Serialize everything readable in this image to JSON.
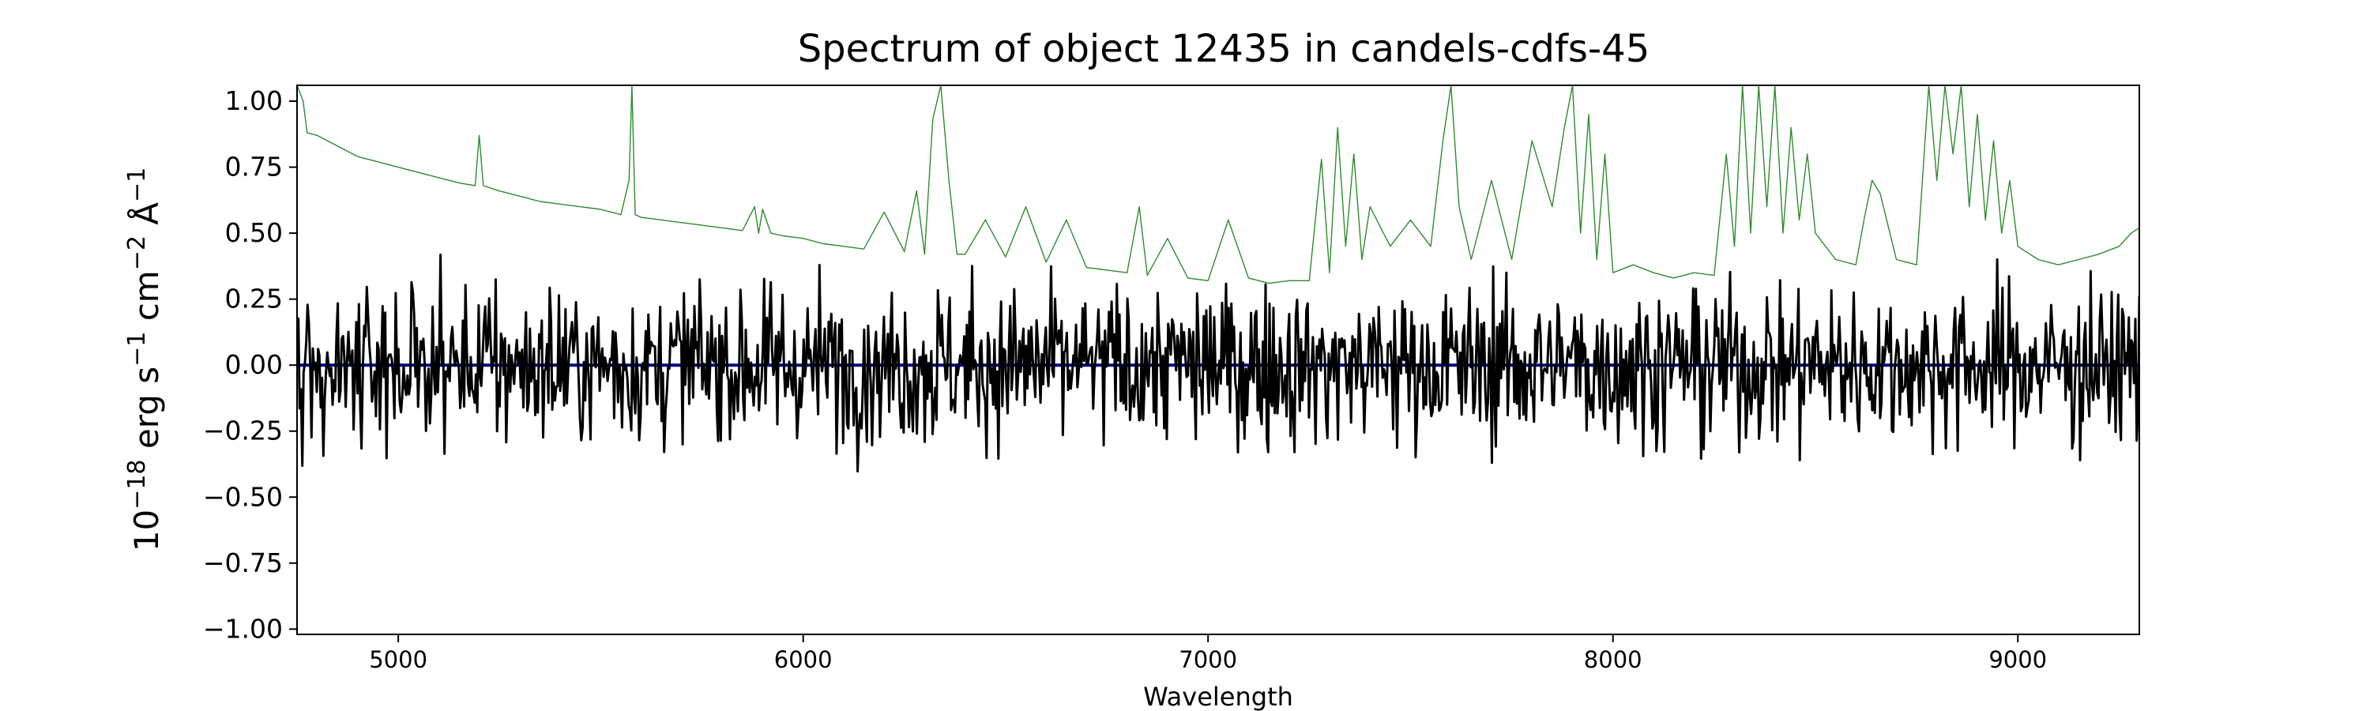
{
  "chart_data": {
    "type": "line",
    "title": "Spectrum of object 12435 in candels-cdfs-45",
    "xlabel": "Wavelength",
    "ylabel_parts": [
      "10",
      "−18",
      " erg s",
      "−1",
      " cm",
      "−2",
      " Å",
      "−1"
    ],
    "xlim": [
      4750,
      9300
    ],
    "ylim": [
      -1.02,
      1.06
    ],
    "x_ticks": [
      5000,
      6000,
      7000,
      8000,
      9000
    ],
    "y_ticks": [
      -1.0,
      -0.75,
      -0.5,
      -0.25,
      0.0,
      0.25,
      0.5,
      0.75,
      1.0
    ],
    "x_tick_labels": [
      "5000",
      "6000",
      "7000",
      "8000",
      "9000"
    ],
    "y_tick_labels": [
      "−1.00",
      "−0.75",
      "−0.50",
      "−0.25",
      "0.00",
      "0.25",
      "0.50",
      "0.75",
      "1.00"
    ],
    "grid": false,
    "legend": false,
    "series": [
      {
        "role": "model",
        "color": "#00008b",
        "x": [
          4750,
          9300
        ],
        "y": [
          0.0,
          0.0
        ]
      },
      {
        "role": "error",
        "color": "#2e8b2e",
        "x": [
          4750,
          4765,
          4775,
          4800,
          4850,
          4900,
          4950,
          5000,
          5050,
          5100,
          5150,
          5190,
          5200,
          5210,
          5250,
          5300,
          5350,
          5400,
          5450,
          5500,
          5550,
          5570,
          5577,
          5585,
          5600,
          5650,
          5700,
          5750,
          5800,
          5850,
          5880,
          5890,
          5900,
          5920,
          5950,
          6000,
          6050,
          6100,
          6150,
          6200,
          6250,
          6280,
          6300,
          6320,
          6340,
          6360,
          6380,
          6400,
          6450,
          6500,
          6550,
          6600,
          6650,
          6700,
          6750,
          6800,
          6830,
          6850,
          6900,
          6950,
          7000,
          7050,
          7100,
          7150,
          7200,
          7250,
          7280,
          7300,
          7320,
          7340,
          7360,
          7380,
          7400,
          7450,
          7500,
          7550,
          7580,
          7600,
          7620,
          7650,
          7700,
          7750,
          7800,
          7850,
          7880,
          7900,
          7920,
          7940,
          7960,
          7980,
          8000,
          8050,
          8100,
          8150,
          8200,
          8250,
          8280,
          8300,
          8320,
          8340,
          8360,
          8380,
          8400,
          8420,
          8440,
          8460,
          8480,
          8500,
          8550,
          8600,
          8620,
          8640,
          8660,
          8700,
          8750,
          8760,
          8780,
          8800,
          8820,
          8840,
          8860,
          8880,
          8900,
          8920,
          8940,
          8960,
          8980,
          9000,
          9050,
          9100,
          9150,
          9200,
          9250,
          9280,
          9300
        ],
        "y": [
          1.06,
          1.0,
          0.88,
          0.87,
          0.83,
          0.79,
          0.77,
          0.75,
          0.73,
          0.71,
          0.69,
          0.68,
          0.87,
          0.68,
          0.66,
          0.64,
          0.62,
          0.61,
          0.6,
          0.59,
          0.57,
          0.7,
          1.06,
          0.57,
          0.56,
          0.55,
          0.54,
          0.53,
          0.52,
          0.51,
          0.6,
          0.5,
          0.59,
          0.5,
          0.49,
          0.48,
          0.46,
          0.45,
          0.44,
          0.58,
          0.43,
          0.66,
          0.42,
          0.93,
          1.06,
          0.7,
          0.42,
          0.42,
          0.55,
          0.41,
          0.6,
          0.39,
          0.55,
          0.37,
          0.36,
          0.35,
          0.6,
          0.34,
          0.48,
          0.33,
          0.32,
          0.55,
          0.33,
          0.31,
          0.32,
          0.32,
          0.78,
          0.35,
          0.9,
          0.45,
          0.8,
          0.4,
          0.6,
          0.45,
          0.55,
          0.45,
          0.85,
          1.06,
          0.6,
          0.4,
          0.7,
          0.4,
          0.85,
          0.6,
          0.9,
          1.06,
          0.5,
          0.95,
          0.4,
          0.8,
          0.35,
          0.38,
          0.35,
          0.33,
          0.35,
          0.34,
          0.8,
          0.45,
          1.06,
          0.5,
          1.06,
          0.6,
          1.06,
          0.5,
          0.9,
          0.55,
          0.8,
          0.5,
          0.4,
          0.38,
          0.55,
          0.7,
          0.65,
          0.4,
          0.38,
          0.6,
          1.06,
          0.7,
          1.06,
          0.8,
          1.06,
          0.6,
          0.95,
          0.55,
          0.85,
          0.5,
          0.7,
          0.45,
          0.4,
          0.38,
          0.4,
          0.42,
          0.45,
          0.5,
          0.52
        ]
      }
    ]
  }
}
